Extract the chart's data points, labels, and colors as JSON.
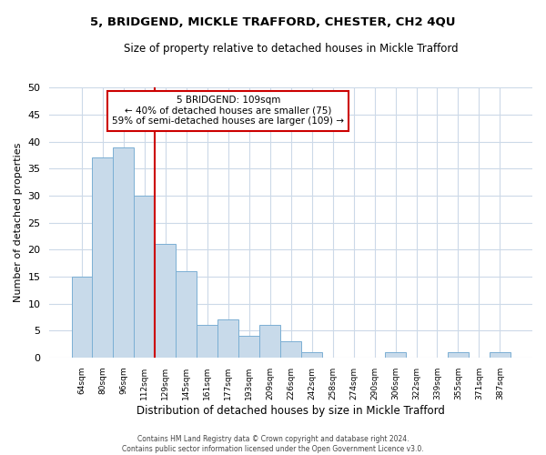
{
  "title": "5, BRIDGEND, MICKLE TRAFFORD, CHESTER, CH2 4QU",
  "subtitle": "Size of property relative to detached houses in Mickle Trafford",
  "xlabel": "Distribution of detached houses by size in Mickle Trafford",
  "ylabel": "Number of detached properties",
  "bar_color": "#c8daea",
  "bar_edge_color": "#7bafd4",
  "categories": [
    "64sqm",
    "80sqm",
    "96sqm",
    "112sqm",
    "129sqm",
    "145sqm",
    "161sqm",
    "177sqm",
    "193sqm",
    "209sqm",
    "226sqm",
    "242sqm",
    "258sqm",
    "274sqm",
    "290sqm",
    "306sqm",
    "322sqm",
    "339sqm",
    "355sqm",
    "371sqm",
    "387sqm"
  ],
  "values": [
    15,
    37,
    39,
    30,
    21,
    16,
    6,
    7,
    4,
    6,
    3,
    1,
    0,
    0,
    0,
    1,
    0,
    0,
    1,
    0,
    1
  ],
  "ylim": [
    0,
    50
  ],
  "yticks": [
    0,
    5,
    10,
    15,
    20,
    25,
    30,
    35,
    40,
    45,
    50
  ],
  "vline_x_index": 3,
  "vline_color": "#cc0000",
  "annotation_title": "5 BRIDGEND: 109sqm",
  "annotation_line1": "← 40% of detached houses are smaller (75)",
  "annotation_line2": "59% of semi-detached houses are larger (109) →",
  "annotation_box_color": "#ffffff",
  "annotation_box_edge": "#cc0000",
  "footer1": "Contains HM Land Registry data © Crown copyright and database right 2024.",
  "footer2": "Contains public sector information licensed under the Open Government Licence v3.0.",
  "background_color": "#ffffff",
  "grid_color": "#ccd9e8"
}
